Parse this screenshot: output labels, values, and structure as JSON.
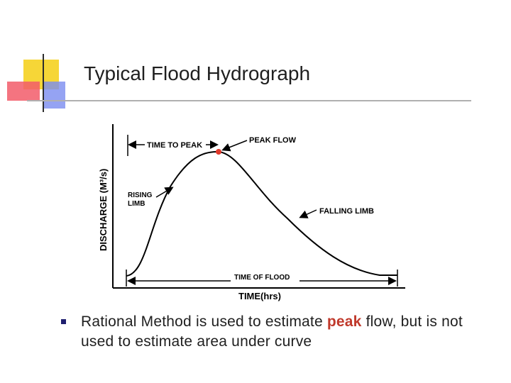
{
  "slide": {
    "title": "Typical Flood Hydrograph"
  },
  "diagram": {
    "y_axis_label": "DISCHARGE (M³/s)",
    "x_axis_label": "TIME(hrs)",
    "time_to_peak": "TIME TO PEAK",
    "peak_flow": "PEAK FLOW",
    "rising_limb_line1": "RISING",
    "rising_limb_line2": "LIMB",
    "falling_limb": "FALLING LIMB",
    "time_of_flood": "TIME OF FLOOD",
    "peak_marker_color": "#e0392b"
  },
  "bullet": {
    "text_before": "Rational Method is used to estimate ",
    "keyword": "peak",
    "text_after": " flow, but is not used to estimate area under curve",
    "keyword_color": "#c0392b"
  }
}
